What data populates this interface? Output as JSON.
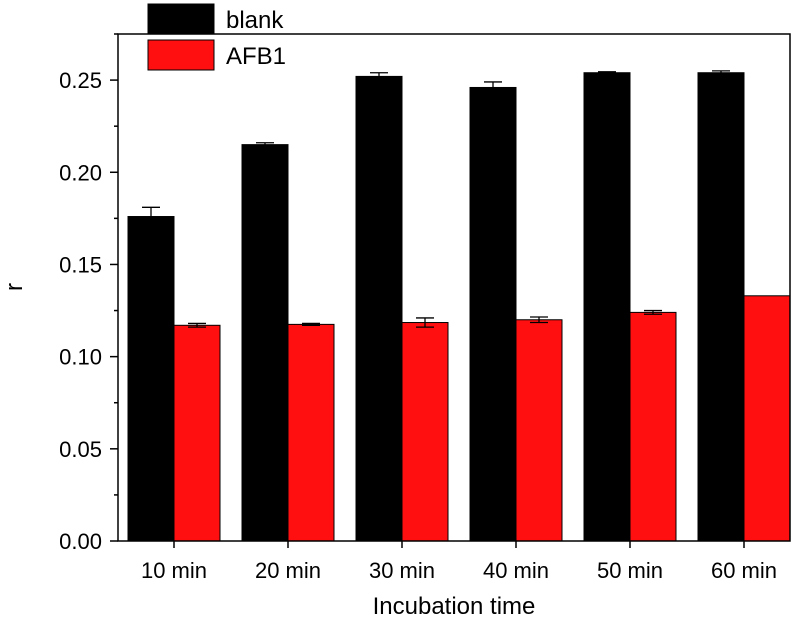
{
  "chart_data": {
    "type": "bar",
    "title": "",
    "xlabel": "Incubation time",
    "ylabel": "r",
    "categories": [
      "10 min",
      "20 min",
      "30 min",
      "40 min",
      "50 min",
      "60 min"
    ],
    "series": [
      {
        "name": "blank",
        "color": "#000000",
        "values": [
          0.176,
          0.215,
          0.252,
          0.246,
          0.254,
          0.254
        ],
        "errors": [
          0.005,
          0.001,
          0.002,
          0.003,
          0.0005,
          0.001
        ]
      },
      {
        "name": "AFB1",
        "color": "#ff0f0f",
        "values": [
          0.117,
          0.1175,
          0.1185,
          0.12,
          0.124,
          0.133
        ],
        "errors": [
          0.001,
          0.0005,
          0.0025,
          0.0015,
          0.001,
          0.0
        ]
      }
    ],
    "ylim": [
      0,
      0.275
    ],
    "yticks": [
      "0.00",
      "0.05",
      "0.10",
      "0.15",
      "0.20",
      "0.25"
    ],
    "legend_position": "top-left",
    "grid": false
  }
}
